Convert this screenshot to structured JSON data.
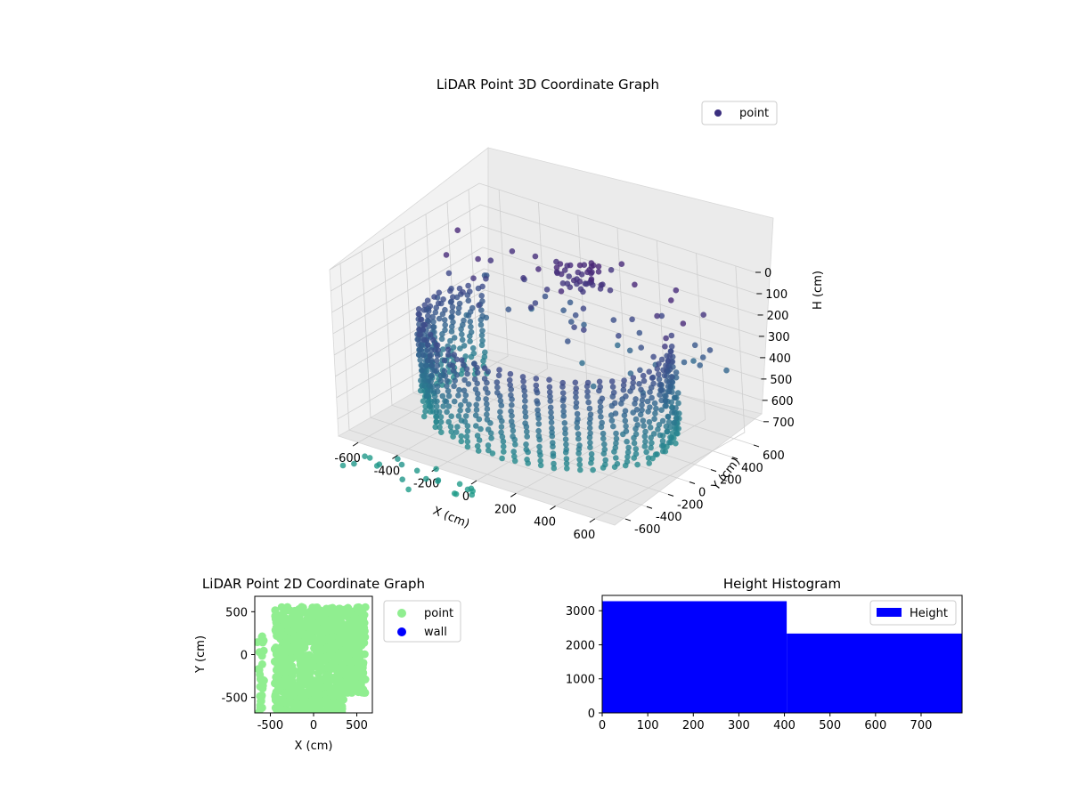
{
  "figure": {
    "background": "#ffffff"
  },
  "chart_data": [
    {
      "type": "scatter",
      "projection": "3d",
      "title": "LiDAR Point 3D Coordinate Graph",
      "xlabel": "X (cm)",
      "ylabel": "Y (cm)",
      "zlabel": "H (cm)",
      "xlim": [
        -700,
        700
      ],
      "ylim": [
        -700,
        700
      ],
      "zlim": [
        0,
        780
      ],
      "z_inverted": true,
      "x_ticks": [
        -600,
        -400,
        -200,
        0,
        200,
        400,
        600
      ],
      "y_ticks": [
        -600,
        -400,
        -200,
        0,
        200,
        400,
        600
      ],
      "z_ticks": [
        0,
        100,
        200,
        300,
        400,
        500,
        600,
        700
      ],
      "colormap": "viridis",
      "grid": true,
      "legend": {
        "placement": "upper-right",
        "entries": [
          "point"
        ]
      },
      "series": [
        {
          "name": "point",
          "color": "#3b2f7f",
          "structure": {
            "ring_radius_cm": 560,
            "ring_center": [
              0,
              0
            ],
            "ring_arc_deg": [
              150,
              390
            ],
            "h_range": [
              290,
              720
            ],
            "scattered_points": 80
          }
        }
      ]
    },
    {
      "type": "scatter",
      "title": "LiDAR Point 2D Coordinate Graph",
      "xlabel": "X (cm)",
      "ylabel": "Y (cm)",
      "xlim": [
        -680,
        680
      ],
      "ylim": [
        -680,
        680
      ],
      "x_ticks": [
        -500,
        0,
        500
      ],
      "y_ticks": [
        -500,
        0,
        500
      ],
      "legend": {
        "placement": "outside-right",
        "entries": [
          "point",
          "wall"
        ]
      },
      "series": [
        {
          "name": "point",
          "color": "#90ee90"
        },
        {
          "name": "wall",
          "color": "#0000ff"
        }
      ]
    },
    {
      "type": "bar",
      "title": "Height Histogram",
      "xlim": [
        0,
        790
      ],
      "ylim": [
        0,
        3450
      ],
      "x_ticks": [
        0,
        100,
        200,
        300,
        400,
        500,
        600,
        700
      ],
      "y_ticks": [
        0,
        1000,
        2000,
        3000
      ],
      "legend": {
        "placement": "upper-right",
        "entries": [
          "Height"
        ]
      },
      "series": [
        {
          "name": "Height",
          "color": "#0000ff",
          "bins": [
            {
              "start": 0,
              "end": 405,
              "count": 3280
            },
            {
              "start": 405,
              "end": 790,
              "count": 2330
            }
          ]
        }
      ]
    }
  ]
}
